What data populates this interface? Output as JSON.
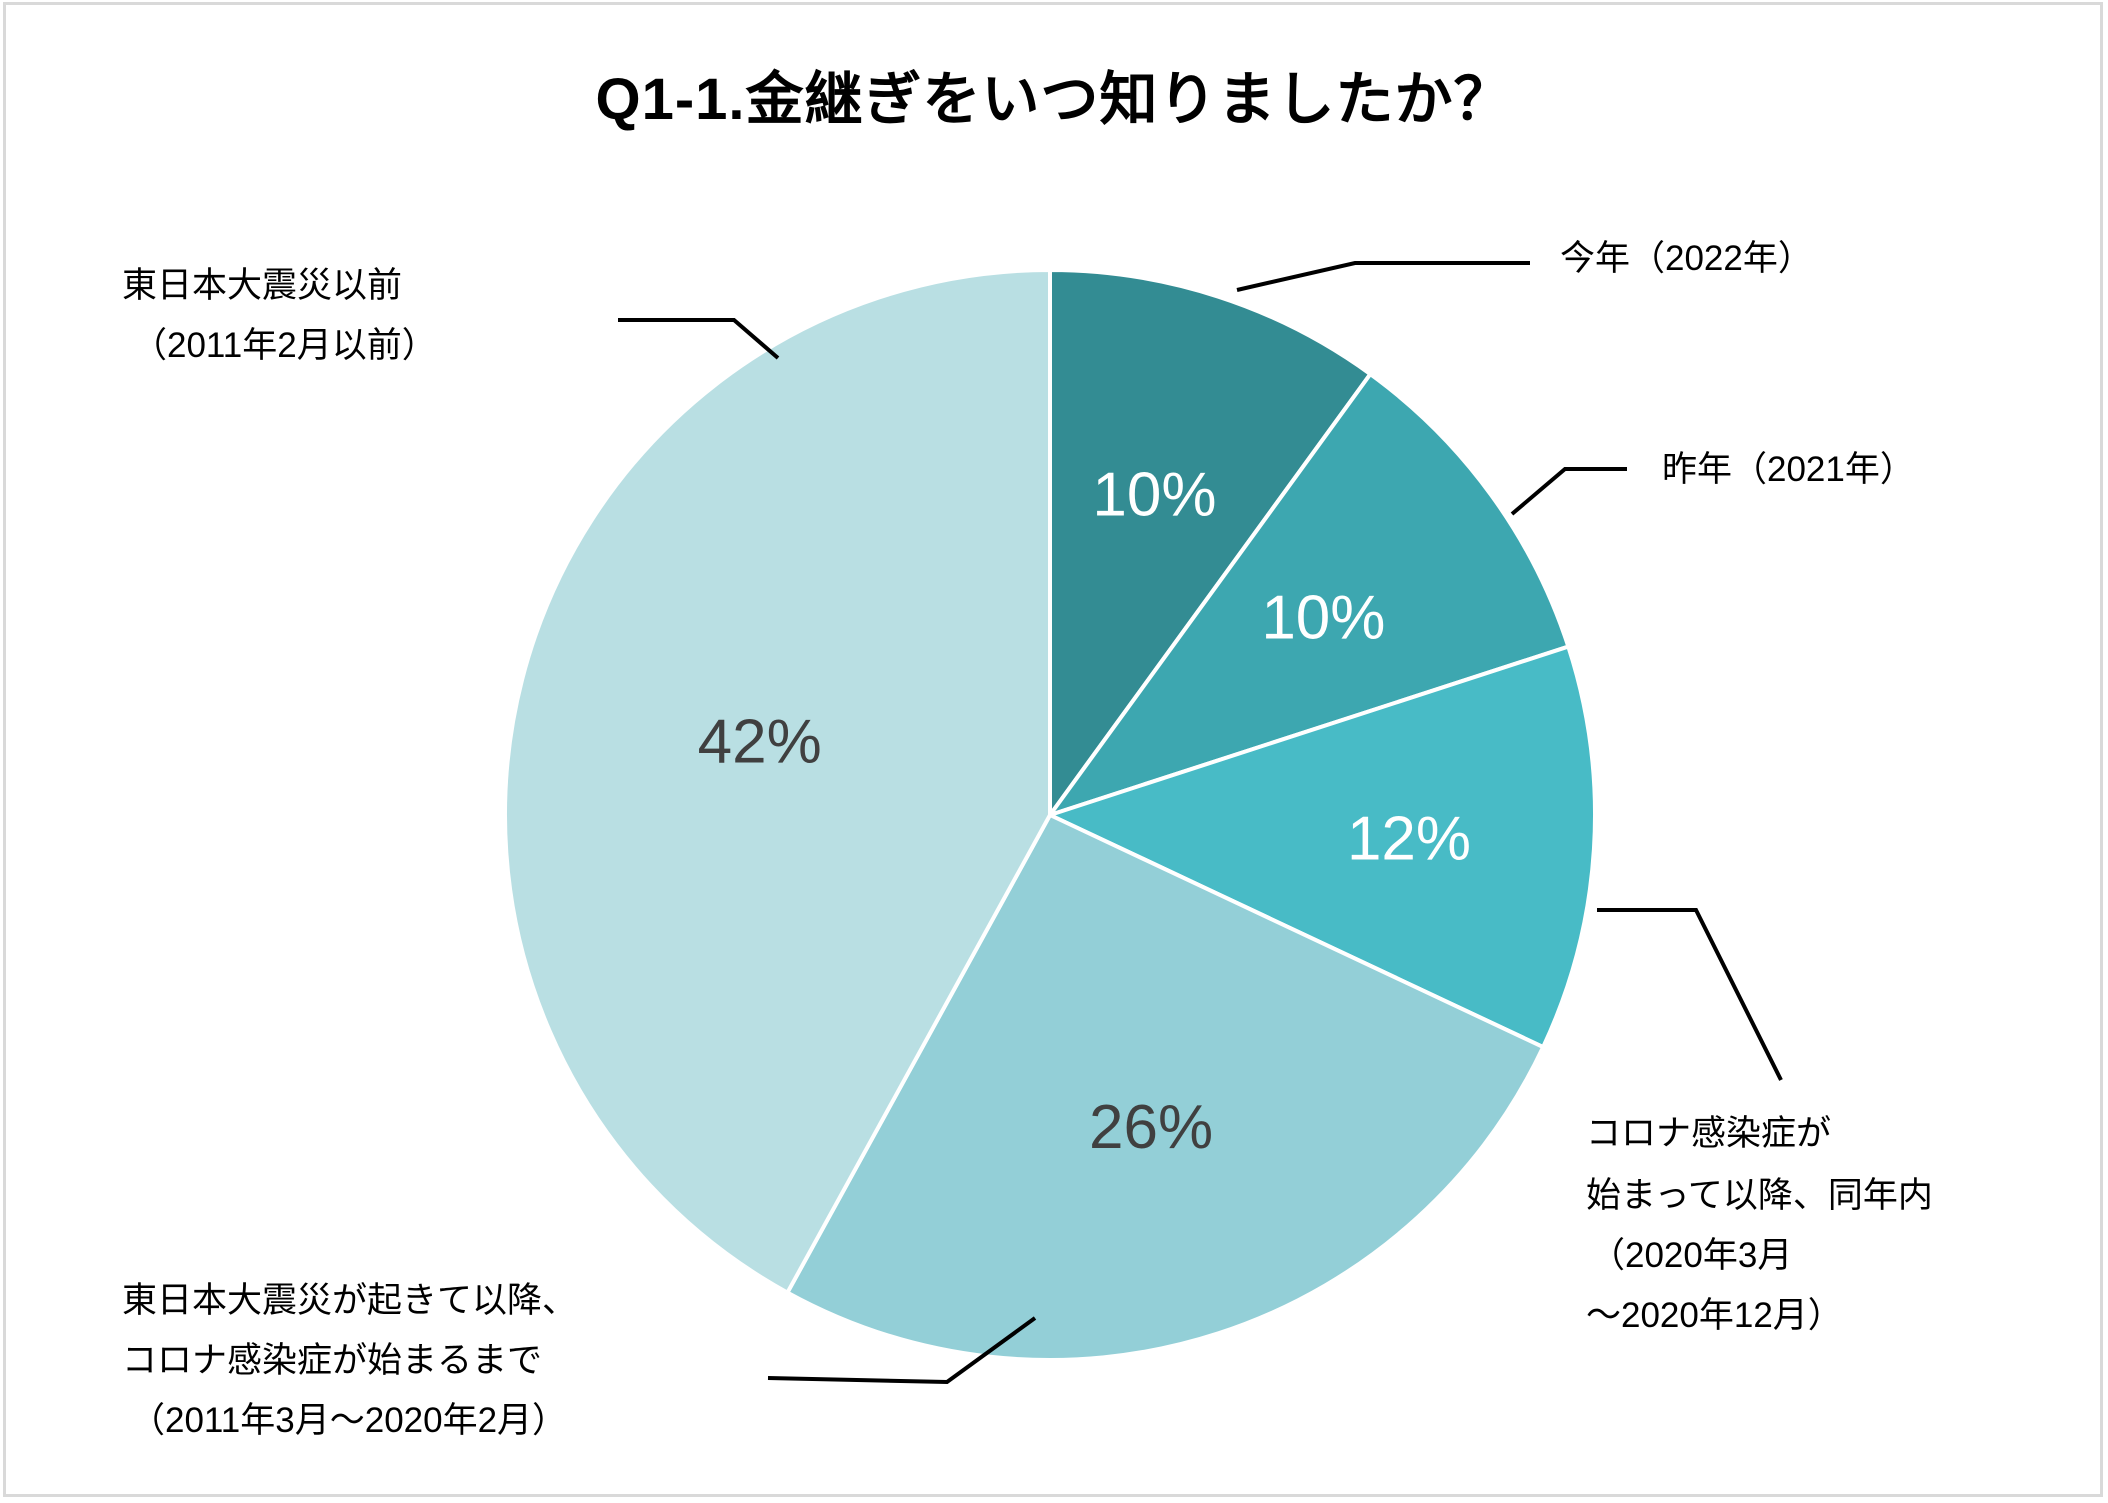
{
  "title": "Q1-1.金継ぎをいつ知りましたか？",
  "chart_data": {
    "type": "pie",
    "title": "Q1-1.金継ぎをいつ知りましたか？",
    "start_angle_deg": 0,
    "direction": "clockwise",
    "categories": [
      "今年（2022年）",
      "昨年（2021年）",
      "コロナ感染症が始まって以降、同年内（2020年3月～2020年12月）",
      "東日本大震災が起きて以降、コロナ感染症が始まるまで（2011年3月～2020年2月）",
      "東日本大震災以前（2011年2月以前）"
    ],
    "values": [
      10,
      10,
      12,
      26,
      42
    ],
    "value_labels": [
      "10%",
      "10%",
      "12%",
      "26%",
      "42%"
    ],
    "colors": [
      "#338C93",
      "#3DA7B0",
      "#48BBC6",
      "#93CFD7",
      "#B9DFE3"
    ],
    "value_label_colors": [
      "#FFFFFF",
      "#FFFFFF",
      "#FFFFFF",
      "#404040",
      "#404040"
    ],
    "legend": "none (callout labels with leader lines)"
  },
  "labels": {
    "this_year": "今年（2022年）",
    "last_year": "昨年（2021年）",
    "covid_line1": "コロナ感染症が",
    "covid_line2": "始まって以降、同年内",
    "covid_line3": "（2020年3月",
    "covid_line4": "～2020年12月）",
    "post_quake_line1": "東日本大震災が起きて以降、",
    "post_quake_line2": "コロナ感染症が始まるまで",
    "post_quake_line3": "（2011年3月～2020年2月）",
    "pre_quake_line1": "東日本大震災以前",
    "pre_quake_line2": "（2011年2月以前）"
  },
  "slice_labels": [
    "10%",
    "10%",
    "12%",
    "26%",
    "42%"
  ]
}
